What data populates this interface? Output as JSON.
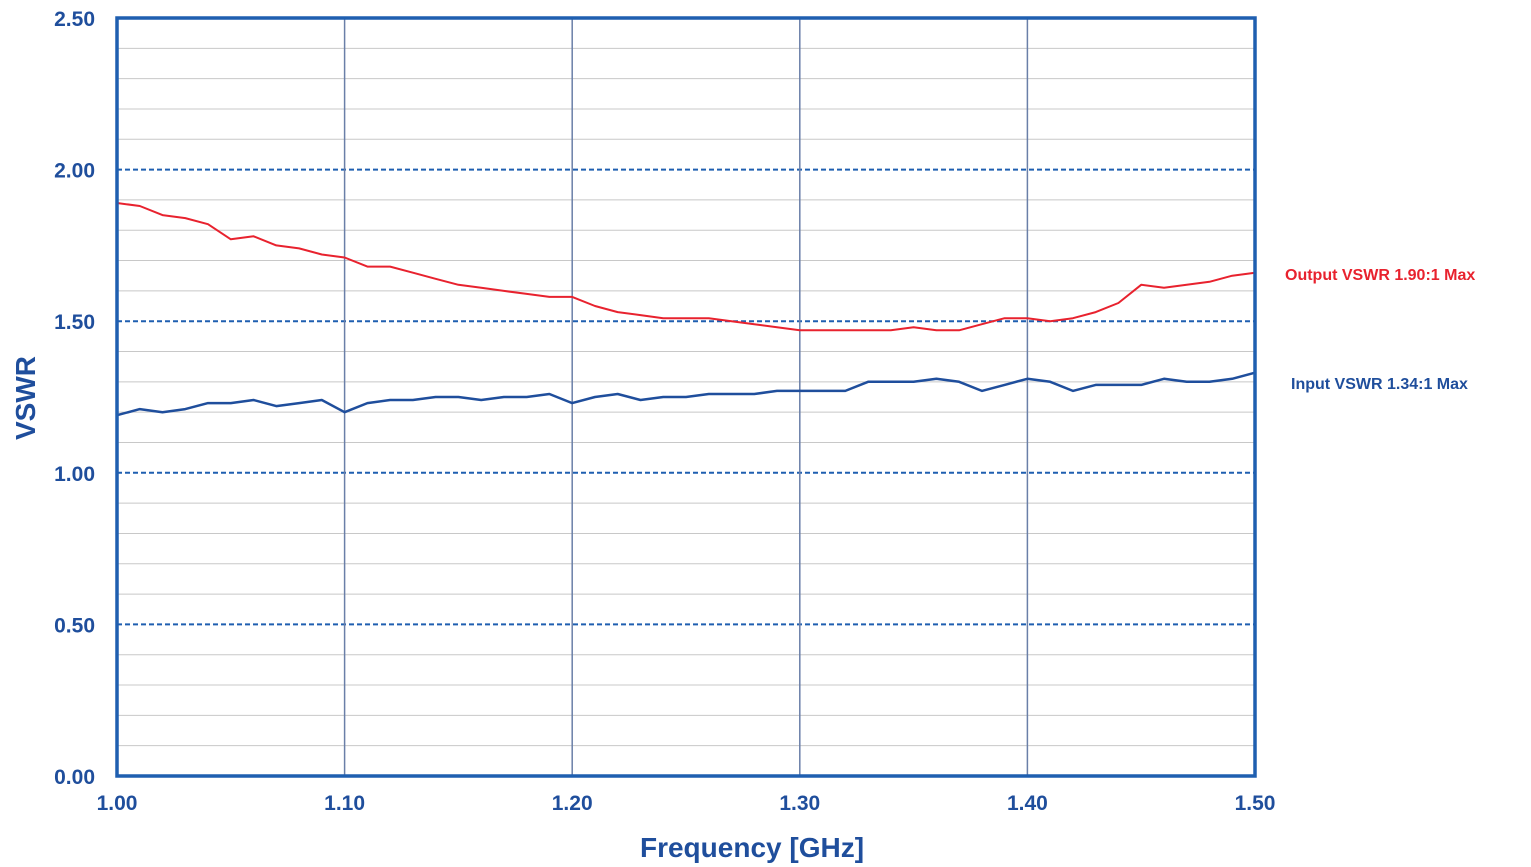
{
  "chart_data": {
    "type": "line",
    "title": "",
    "xlabel": "Frequency [GHz]",
    "ylabel": "VSWR",
    "xlim": [
      1.0,
      1.5
    ],
    "ylim": [
      0.0,
      2.5
    ],
    "x_ticks": [
      "1.00",
      "1.10",
      "1.20",
      "1.30",
      "1.40",
      "1.50"
    ],
    "y_ticks": [
      "0.00",
      "0.50",
      "1.00",
      "1.50",
      "2.00",
      "2.50"
    ],
    "grid": "on",
    "legend": "right-inline-labels",
    "colors": {
      "axis_text": "#1f4e9c",
      "frame": "#1f5fb0",
      "major_grid": "#1f5fb0",
      "minor_grid": "#c8c8c8",
      "vertical_grid": "#6a7fa8"
    },
    "series": [
      {
        "name": "Output VSWR 1.90:1 Max",
        "color": "#e8222e",
        "x": [
          1.0,
          1.01,
          1.02,
          1.03,
          1.04,
          1.05,
          1.06,
          1.07,
          1.08,
          1.09,
          1.1,
          1.11,
          1.12,
          1.13,
          1.14,
          1.15,
          1.16,
          1.17,
          1.18,
          1.19,
          1.2,
          1.21,
          1.22,
          1.23,
          1.24,
          1.25,
          1.26,
          1.27,
          1.28,
          1.29,
          1.3,
          1.31,
          1.32,
          1.33,
          1.34,
          1.35,
          1.36,
          1.37,
          1.38,
          1.39,
          1.4,
          1.41,
          1.42,
          1.43,
          1.44,
          1.45,
          1.46,
          1.47,
          1.48,
          1.49,
          1.5
        ],
        "y": [
          1.89,
          1.88,
          1.85,
          1.84,
          1.82,
          1.77,
          1.78,
          1.75,
          1.74,
          1.72,
          1.71,
          1.68,
          1.68,
          1.66,
          1.64,
          1.62,
          1.61,
          1.6,
          1.59,
          1.58,
          1.58,
          1.55,
          1.53,
          1.52,
          1.51,
          1.51,
          1.51,
          1.5,
          1.49,
          1.48,
          1.47,
          1.47,
          1.47,
          1.47,
          1.47,
          1.48,
          1.47,
          1.47,
          1.49,
          1.51,
          1.51,
          1.5,
          1.51,
          1.53,
          1.56,
          1.62,
          1.61,
          1.62,
          1.63,
          1.65,
          1.66
        ]
      },
      {
        "name": "Input VSWR 1.34:1 Max",
        "color": "#1f4e9c",
        "x": [
          1.0,
          1.01,
          1.02,
          1.03,
          1.04,
          1.05,
          1.06,
          1.07,
          1.08,
          1.09,
          1.1,
          1.11,
          1.12,
          1.13,
          1.14,
          1.15,
          1.16,
          1.17,
          1.18,
          1.19,
          1.2,
          1.21,
          1.22,
          1.23,
          1.24,
          1.25,
          1.26,
          1.27,
          1.28,
          1.29,
          1.3,
          1.31,
          1.32,
          1.33,
          1.34,
          1.35,
          1.36,
          1.37,
          1.38,
          1.39,
          1.4,
          1.41,
          1.42,
          1.43,
          1.44,
          1.45,
          1.46,
          1.47,
          1.48,
          1.49,
          1.5
        ],
        "y": [
          1.19,
          1.21,
          1.2,
          1.21,
          1.23,
          1.23,
          1.24,
          1.22,
          1.23,
          1.24,
          1.2,
          1.23,
          1.24,
          1.24,
          1.25,
          1.25,
          1.24,
          1.25,
          1.25,
          1.26,
          1.23,
          1.25,
          1.26,
          1.24,
          1.25,
          1.25,
          1.26,
          1.26,
          1.26,
          1.27,
          1.27,
          1.27,
          1.27,
          1.3,
          1.3,
          1.3,
          1.31,
          1.3,
          1.27,
          1.29,
          1.31,
          1.3,
          1.27,
          1.29,
          1.29,
          1.29,
          1.31,
          1.3,
          1.3,
          1.31,
          1.33
        ]
      }
    ]
  }
}
